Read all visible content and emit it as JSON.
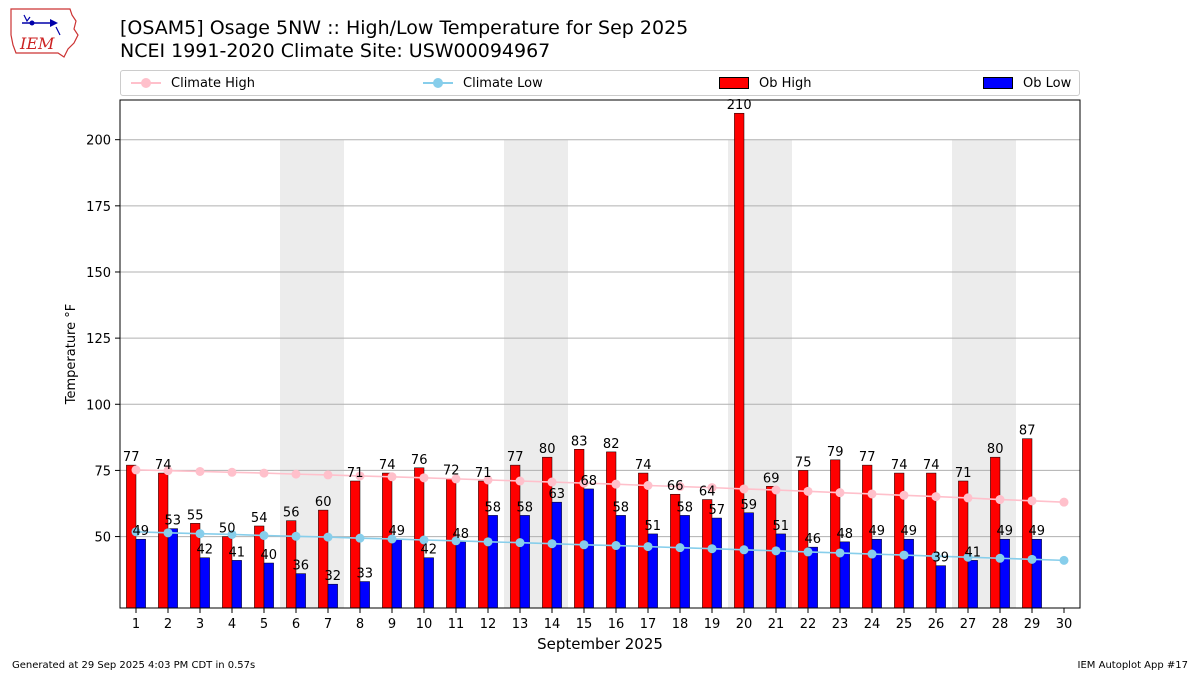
{
  "header": {
    "title_line1": "[OSAM5] Osage 5NW :: High/Low Temperature for Sep 2025",
    "title_line2": "NCEI 1991-2020 Climate Site: USW00094967",
    "logo_text": "IEM"
  },
  "legend": {
    "climate_high": "Climate High",
    "climate_low": "Climate Low",
    "ob_high": "Ob High",
    "ob_low": "Ob Low"
  },
  "footer": {
    "left": "Generated at 29 Sep 2025 4:03 PM CDT in 0.57s",
    "right": "IEM Autoplot App #17"
  },
  "colors": {
    "ob_high": "#ff0000",
    "ob_low": "#0000ff",
    "climate_high": "#ffc0cb",
    "climate_low": "#87ceeb",
    "weekend_band": "#ececec",
    "grid": "#b0b0b0"
  },
  "chart_data": {
    "type": "bar",
    "xlabel": "September 2025",
    "ylabel": "Temperature °F",
    "ylim": [
      23,
      215
    ],
    "yticks": [
      50,
      75,
      100,
      125,
      150,
      175,
      200
    ],
    "grid": "horizontal",
    "legend_position": "top",
    "categories": [
      "1",
      "2",
      "3",
      "4",
      "5",
      "6",
      "7",
      "8",
      "9",
      "10",
      "11",
      "12",
      "13",
      "14",
      "15",
      "16",
      "17",
      "18",
      "19",
      "20",
      "21",
      "22",
      "23",
      "24",
      "25",
      "26",
      "27",
      "28",
      "29",
      "30"
    ],
    "weekend_bands": [
      [
        6,
        7
      ],
      [
        13,
        14
      ],
      [
        20,
        21
      ],
      [
        27,
        28
      ]
    ],
    "series": [
      {
        "name": "Ob High",
        "kind": "bar",
        "values": [
          77,
          74,
          55,
          50,
          54,
          56,
          60,
          71,
          74,
          76,
          72,
          71,
          77,
          80,
          83,
          82,
          74,
          66,
          64,
          210,
          69,
          75,
          79,
          77,
          74,
          74,
          71,
          80,
          87,
          null
        ]
      },
      {
        "name": "Ob Low",
        "kind": "bar",
        "values": [
          49,
          53,
          42,
          41,
          40,
          36,
          32,
          33,
          49,
          42,
          48,
          58,
          58,
          63,
          68,
          58,
          51,
          58,
          57,
          59,
          51,
          46,
          48,
          49,
          49,
          39,
          41,
          49,
          49,
          null
        ]
      },
      {
        "name": "Climate High",
        "kind": "line",
        "values": [
          75.2,
          74.9,
          74.6,
          74.3,
          74.0,
          73.6,
          73.3,
          72.9,
          72.6,
          72.2,
          71.8,
          71.4,
          71.0,
          70.6,
          70.2,
          69.8,
          69.3,
          68.9,
          68.5,
          68.0,
          67.6,
          67.1,
          66.6,
          66.1,
          65.6,
          65.1,
          64.6,
          64.0,
          63.5,
          63.0
        ]
      },
      {
        "name": "Climate Low",
        "kind": "line",
        "values": [
          51.8,
          51.4,
          51.1,
          50.8,
          50.4,
          50.1,
          49.8,
          49.4,
          49.1,
          48.7,
          48.4,
          48.0,
          47.7,
          47.3,
          46.9,
          46.6,
          46.2,
          45.8,
          45.4,
          45.0,
          44.6,
          44.2,
          43.8,
          43.4,
          43.0,
          42.6,
          42.2,
          41.8,
          41.4,
          41.0
        ]
      }
    ]
  }
}
